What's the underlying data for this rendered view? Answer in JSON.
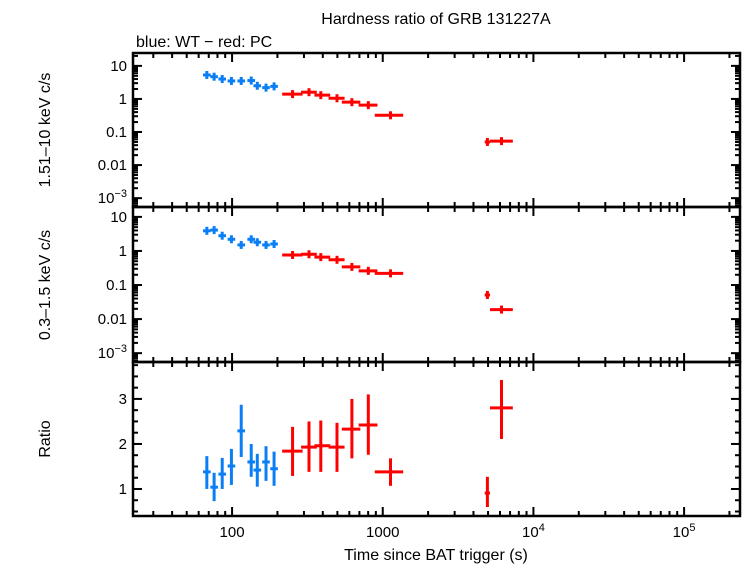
{
  "chart_data": {
    "type": "scatter",
    "title": "Hardness ratio of GRB 131227A",
    "subtitle": "blue: WT − red: PC",
    "xlabel": "Time since BAT trigger (s)",
    "xscale": "log",
    "xlim": [
      22,
      235000
    ],
    "xticks": [
      {
        "v": 100,
        "label": "100"
      },
      {
        "v": 1000,
        "label": "1000"
      },
      {
        "v": 10000,
        "label": "10",
        "sup": "4"
      },
      {
        "v": 100000,
        "label": "10",
        "sup": "5"
      }
    ],
    "colors": {
      "WT": "#0a7ff5",
      "PC": "#ff0000"
    },
    "panels": [
      {
        "ylabel": "1.51–10 keV c/s",
        "yscale": "log",
        "ylim": [
          0.00054,
          24.5
        ],
        "yticks": [
          {
            "v": 10,
            "label": "10"
          },
          {
            "v": 1,
            "label": "1"
          },
          {
            "v": 0.1,
            "label": "0.1"
          },
          {
            "v": 0.01,
            "label": "0.01"
          },
          {
            "v": 0.001,
            "label": "10",
            "sup": "−3"
          }
        ],
        "series": [
          {
            "mode": "WT",
            "points": [
              {
                "t": 68,
                "y": 5.3
              },
              {
                "t": 76,
                "y": 4.7
              },
              {
                "t": 86,
                "y": 4.0
              },
              {
                "t": 99,
                "y": 3.5
              },
              {
                "t": 115,
                "y": 3.5
              },
              {
                "t": 134,
                "y": 3.6
              },
              {
                "t": 147,
                "y": 2.5
              },
              {
                "t": 168,
                "y": 2.2
              },
              {
                "t": 190,
                "y": 2.4
              }
            ]
          },
          {
            "mode": "PC",
            "points": [
              {
                "t": 252,
                "tlo": 215,
                "thi": 294,
                "y": 1.4
              },
              {
                "t": 324,
                "tlo": 287,
                "thi": 365,
                "y": 1.6
              },
              {
                "t": 388,
                "tlo": 352,
                "thi": 448,
                "y": 1.3
              },
              {
                "t": 497,
                "tlo": 437,
                "thi": 558,
                "y": 1.05
              },
              {
                "t": 624,
                "tlo": 535,
                "thi": 710,
                "y": 0.8
              },
              {
                "t": 802,
                "tlo": 692,
                "thi": 922,
                "y": 0.65
              },
              {
                "t": 1126,
                "tlo": 885,
                "thi": 1366,
                "y": 0.32
              },
              {
                "t": 4950,
                "tlo": 4750,
                "thi": 5150,
                "y": 0.05
              },
              {
                "t": 6140,
                "tlo": 5150,
                "thi": 7300,
                "y": 0.053
              }
            ]
          }
        ]
      },
      {
        "ylabel": "0.3–1.5 keV c/s",
        "yscale": "log",
        "ylim": [
          0.00055,
          19.5
        ],
        "yticks": [
          {
            "v": 10,
            "label": "10"
          },
          {
            "v": 1,
            "label": "1"
          },
          {
            "v": 0.1,
            "label": "0.1"
          },
          {
            "v": 0.01,
            "label": "0.01"
          },
          {
            "v": 0.001,
            "label": "10",
            "sup": "−3"
          }
        ],
        "series": [
          {
            "mode": "WT",
            "points": [
              {
                "t": 68,
                "y": 3.9
              },
              {
                "t": 76,
                "y": 4.1
              },
              {
                "t": 86,
                "y": 2.8
              },
              {
                "t": 99,
                "y": 2.2
              },
              {
                "t": 115,
                "y": 1.5
              },
              {
                "t": 134,
                "y": 2.2
              },
              {
                "t": 147,
                "y": 1.8
              },
              {
                "t": 168,
                "y": 1.5
              },
              {
                "t": 190,
                "y": 1.6
              }
            ]
          },
          {
            "mode": "PC",
            "points": [
              {
                "t": 252,
                "tlo": 215,
                "thi": 294,
                "y": 0.76
              },
              {
                "t": 324,
                "tlo": 287,
                "thi": 365,
                "y": 0.8
              },
              {
                "t": 388,
                "tlo": 352,
                "thi": 448,
                "y": 0.66
              },
              {
                "t": 497,
                "tlo": 437,
                "thi": 558,
                "y": 0.55
              },
              {
                "t": 624,
                "tlo": 535,
                "thi": 710,
                "y": 0.34
              },
              {
                "t": 802,
                "tlo": 692,
                "thi": 922,
                "y": 0.26
              },
              {
                "t": 1126,
                "tlo": 885,
                "thi": 1366,
                "y": 0.22
              },
              {
                "t": 4950,
                "tlo": 4750,
                "thi": 5150,
                "y": 0.051
              },
              {
                "t": 6140,
                "tlo": 5150,
                "thi": 7300,
                "y": 0.019
              }
            ]
          }
        ]
      },
      {
        "ylabel": "Ratio",
        "yscale": "linear",
        "ylim": [
          0.4,
          3.82
        ],
        "yticks": [
          {
            "v": 3,
            "label": "3"
          },
          {
            "v": 2,
            "label": "2"
          },
          {
            "v": 1,
            "label": "1"
          }
        ],
        "series": [
          {
            "mode": "WT",
            "points": [
              {
                "t": 68,
                "y": 1.38,
                "ylo": 1.0,
                "yhi": 1.73
              },
              {
                "t": 76,
                "y": 1.04,
                "ylo": 0.73,
                "yhi": 1.36
              },
              {
                "t": 86,
                "y": 1.33,
                "ylo": 1.0,
                "yhi": 1.69
              },
              {
                "t": 99,
                "y": 1.51,
                "ylo": 1.09,
                "yhi": 1.89
              },
              {
                "t": 115,
                "y": 2.29,
                "ylo": 1.71,
                "yhi": 2.87
              },
              {
                "t": 134,
                "y": 1.6,
                "ylo": 1.27,
                "yhi": 2.0
              },
              {
                "t": 147,
                "y": 1.42,
                "ylo": 1.05,
                "yhi": 1.78
              },
              {
                "t": 168,
                "y": 1.6,
                "ylo": 1.18,
                "yhi": 1.95
              },
              {
                "t": 190,
                "y": 1.45,
                "ylo": 1.07,
                "yhi": 1.83
              }
            ]
          },
          {
            "mode": "PC",
            "points": [
              {
                "t": 252,
                "tlo": 215,
                "thi": 294,
                "y": 1.84,
                "ylo": 1.29,
                "yhi": 2.38
              },
              {
                "t": 324,
                "tlo": 287,
                "thi": 365,
                "y": 1.93,
                "ylo": 1.38,
                "yhi": 2.5
              },
              {
                "t": 388,
                "tlo": 352,
                "thi": 448,
                "y": 1.96,
                "ylo": 1.38,
                "yhi": 2.52
              },
              {
                "t": 497,
                "tlo": 437,
                "thi": 558,
                "y": 1.93,
                "ylo": 1.38,
                "yhi": 2.47
              },
              {
                "t": 624,
                "tlo": 535,
                "thi": 710,
                "y": 2.33,
                "ylo": 1.68,
                "yhi": 3.0
              },
              {
                "t": 802,
                "tlo": 692,
                "thi": 922,
                "y": 2.42,
                "ylo": 1.76,
                "yhi": 3.1
              },
              {
                "t": 1126,
                "tlo": 885,
                "thi": 1366,
                "y": 1.38,
                "ylo": 1.07,
                "yhi": 1.68
              },
              {
                "t": 4950,
                "tlo": 4750,
                "thi": 5150,
                "y": 0.91,
                "ylo": 0.6,
                "yhi": 1.27
              },
              {
                "t": 6140,
                "tlo": 5150,
                "thi": 7300,
                "y": 2.8,
                "ylo": 2.11,
                "yhi": 3.42
              }
            ]
          }
        ]
      }
    ]
  }
}
